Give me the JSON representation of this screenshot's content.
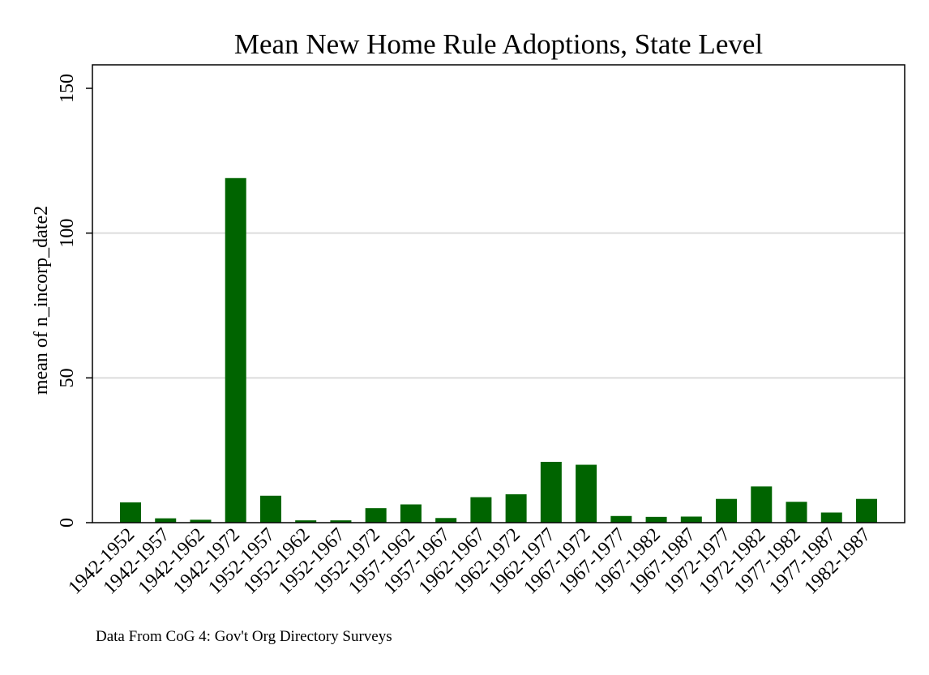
{
  "chart_data": {
    "type": "bar",
    "title": "Mean New Home Rule Adoptions, State Level",
    "ylabel": "mean of n_incorp_date2",
    "xlabel": "",
    "ylim": [
      0,
      150
    ],
    "yticks": [
      "0",
      "50",
      "100",
      "150"
    ],
    "ytick_values": [
      0,
      50,
      100,
      150
    ],
    "grid": true,
    "legend": "none",
    "bar_color": "#006400",
    "gridline_color": "#dcdcdc",
    "categories": [
      "1942-1952",
      "1942-1957",
      "1942-1962",
      "1942-1972",
      "1952-1957",
      "1952-1962",
      "1952-1967",
      "1952-1972",
      "1957-1962",
      "1957-1967",
      "1962-1967",
      "1962-1972",
      "1962-1977",
      "1967-1972",
      "1967-1977",
      "1967-1982",
      "1967-1987",
      "1972-1977",
      "1972-1982",
      "1977-1982",
      "1977-1987",
      "1982-1987"
    ],
    "values": [
      7,
      1.5,
      1,
      119,
      9.3,
      0.8,
      0.8,
      5,
      6.3,
      1.6,
      8.8,
      9.8,
      21,
      20,
      2.3,
      2,
      2.1,
      8.2,
      12.5,
      7.2,
      3.5,
      8.2
    ]
  },
  "note": "Data From CoG 4: Gov't Org Directory Surveys"
}
